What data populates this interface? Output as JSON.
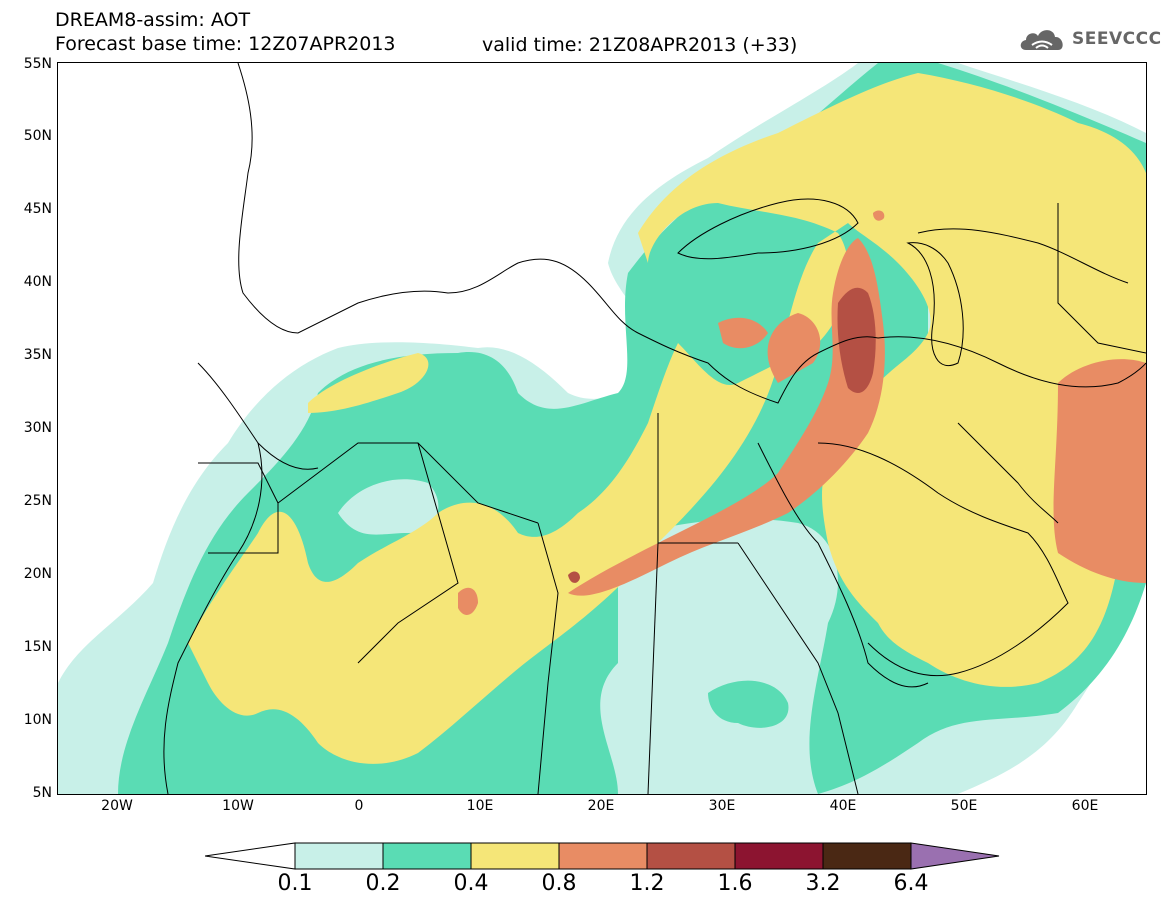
{
  "header": {
    "title_line1": "DREAM8-assim: AOT",
    "title_line2": "Forecast base time: 12Z07APR2013",
    "valid_time": "valid time: 21Z08APR2013 (+33)",
    "logo_text": "SEEVCCC"
  },
  "map": {
    "lat_labels": [
      "55N",
      "50N",
      "45N",
      "40N",
      "35N",
      "30N",
      "25N",
      "20N",
      "15N",
      "10N",
      "5N"
    ],
    "lon_labels": [
      "20W",
      "10W",
      "0",
      "10E",
      "20E",
      "30E",
      "40E",
      "50E",
      "60E"
    ],
    "colors": {
      "c01": "#c8f0e8",
      "c02": "#5adcb4",
      "c04": "#f5e678",
      "c08": "#e88c64",
      "c12": "#b45044",
      "c16": "#8c1430",
      "c32": "#4a2814",
      "c64": "#9a70b0"
    }
  },
  "colorbar": {
    "labels": [
      "0.1",
      "0.2",
      "0.4",
      "0.8",
      "1.2",
      "1.6",
      "3.2",
      "6.4"
    ]
  }
}
